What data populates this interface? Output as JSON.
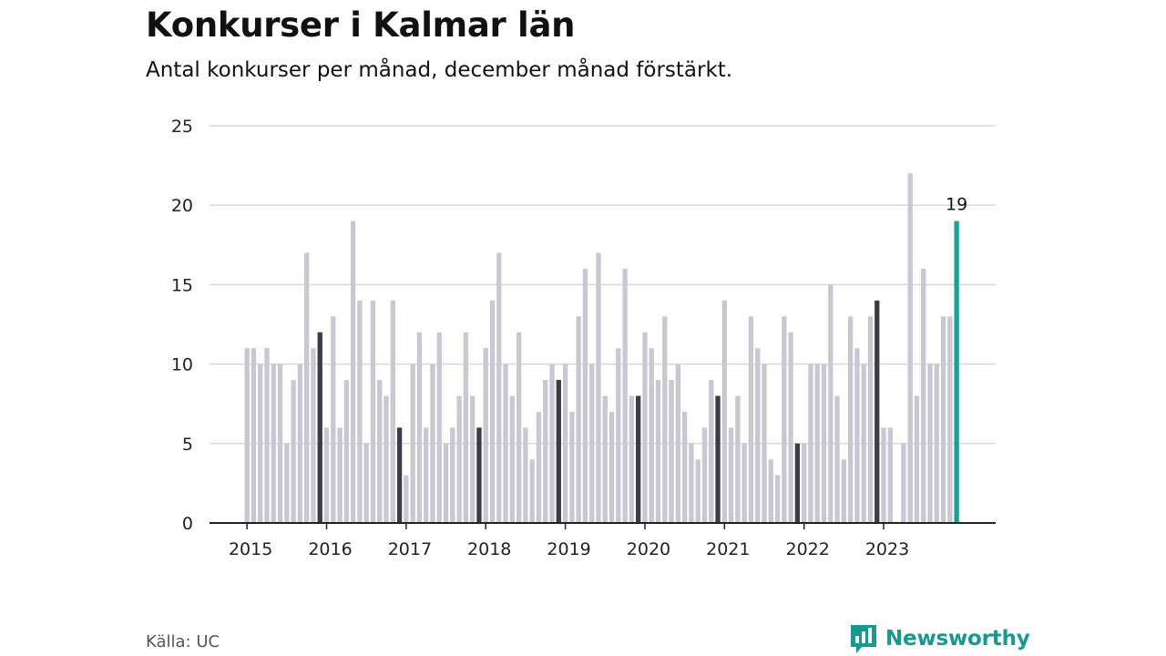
{
  "header": {
    "title": "Konkurser i Kalmar län",
    "subtitle": "Antal konkurser per månad, december månad förstärkt."
  },
  "footer": {
    "source": "Källa: UC",
    "brand": "Newsworthy"
  },
  "colors": {
    "bar": "#c8c7d2",
    "december": "#3c3b47",
    "latest": "#17a394",
    "grid": "#d9d9d9",
    "axis": "#222222",
    "brand": "#16998f"
  },
  "icons": {
    "brand_logo": "bar-chart-speech-bubble-icon"
  },
  "chart_data": {
    "type": "bar",
    "title": "Konkurser i Kalmar län",
    "subtitle": "Antal konkurser per månad, december månad förstärkt.",
    "xlabel": "",
    "ylabel": "",
    "ylim": [
      0,
      25
    ],
    "yticks": [
      0,
      5,
      10,
      15,
      20,
      25
    ],
    "grid": true,
    "legend": "none",
    "x_tick_labels": [
      "2015",
      "2016",
      "2017",
      "2018",
      "2019",
      "2020",
      "2021",
      "2022",
      "2023"
    ],
    "start": "2015-01",
    "end": "2023-12",
    "highlight_rule": "december",
    "latest_label": "19",
    "values": [
      11,
      11,
      10,
      11,
      10,
      10,
      5,
      9,
      10,
      17,
      11,
      12,
      6,
      13,
      6,
      9,
      19,
      14,
      5,
      14,
      9,
      8,
      14,
      6,
      3,
      10,
      12,
      6,
      10,
      12,
      5,
      6,
      8,
      12,
      8,
      6,
      11,
      14,
      17,
      10,
      8,
      12,
      6,
      4,
      7,
      9,
      10,
      9,
      10,
      7,
      13,
      16,
      10,
      17,
      8,
      7,
      11,
      16,
      8,
      8,
      12,
      11,
      9,
      13,
      9,
      10,
      7,
      5,
      4,
      6,
      9,
      8,
      14,
      6,
      8,
      5,
      13,
      11,
      10,
      4,
      3,
      13,
      12,
      5,
      5,
      10,
      10,
      10,
      15,
      8,
      4,
      13,
      11,
      10,
      13,
      14,
      6,
      6,
      0,
      5,
      22,
      8,
      16,
      10,
      10,
      13,
      13,
      19
    ]
  }
}
